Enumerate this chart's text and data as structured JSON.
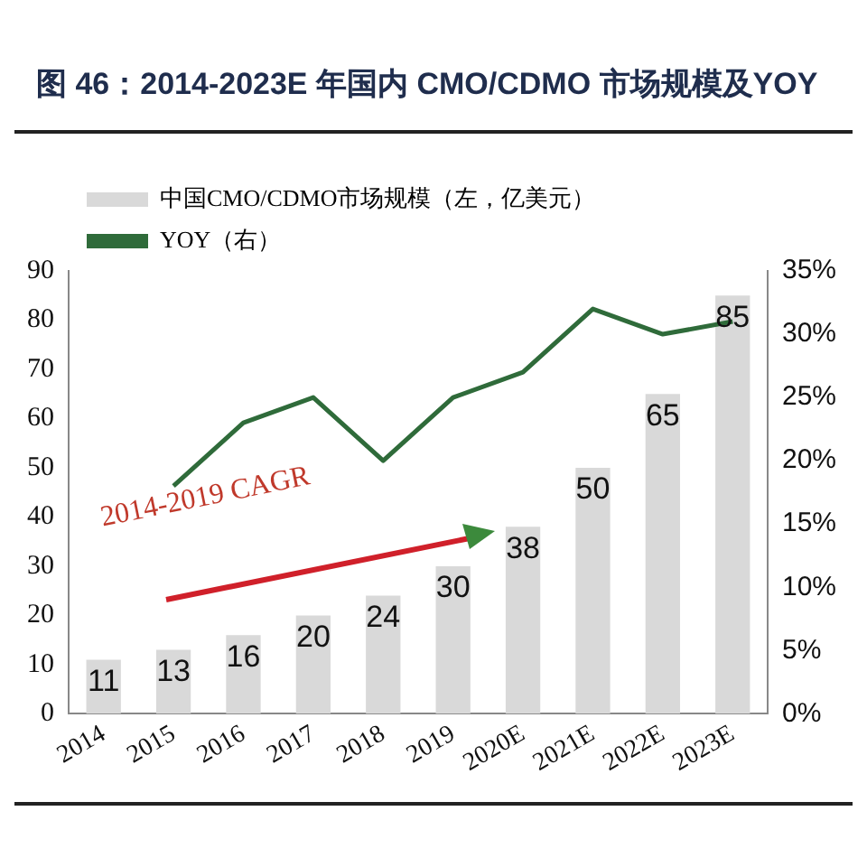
{
  "chart_data": {
    "type": "bar",
    "title": "图 46：2014-2023E 年国内 CMO/CDMO 市场规模及YOY",
    "categories": [
      "2014",
      "2015",
      "2016",
      "2017",
      "2018",
      "2019",
      "2020E",
      "2021E",
      "2022E",
      "2023E"
    ],
    "series": [
      {
        "name": "中国CMO/CDMO市场规模（左，亿美元）",
        "color": "#d9d9d9",
        "values": [
          11,
          13,
          16,
          20,
          24,
          30,
          38,
          50,
          65,
          85
        ],
        "value_labels": [
          "11",
          "13",
          "16",
          "20",
          "24",
          "30",
          "38",
          "50",
          "65",
          "85"
        ]
      },
      {
        "name": "YOY（右）",
        "type": "line",
        "axis": "y2",
        "color": "#2f6b3a",
        "values": [
          null,
          18,
          23,
          25,
          20,
          25,
          27,
          32,
          30,
          31
        ]
      }
    ],
    "ylim": [
      0,
      90
    ],
    "yticks": [
      0,
      10,
      20,
      30,
      40,
      50,
      60,
      70,
      80,
      90
    ],
    "y2lim": [
      0,
      35
    ],
    "y2ticks": [
      {
        "value": 0,
        "label": "0%"
      },
      {
        "value": 5,
        "label": "5%"
      },
      {
        "value": 10,
        "label": "10%"
      },
      {
        "value": 15,
        "label": "15%"
      },
      {
        "value": 20,
        "label": "20%"
      },
      {
        "value": 25,
        "label": "25%"
      },
      {
        "value": 30,
        "label": "30%"
      },
      {
        "value": 35,
        "label": "35%"
      }
    ],
    "grid": false,
    "legend": "top left",
    "marker": "none",
    "line_style": "solid",
    "annotations": [
      "2014-2019 CAGR"
    ]
  }
}
